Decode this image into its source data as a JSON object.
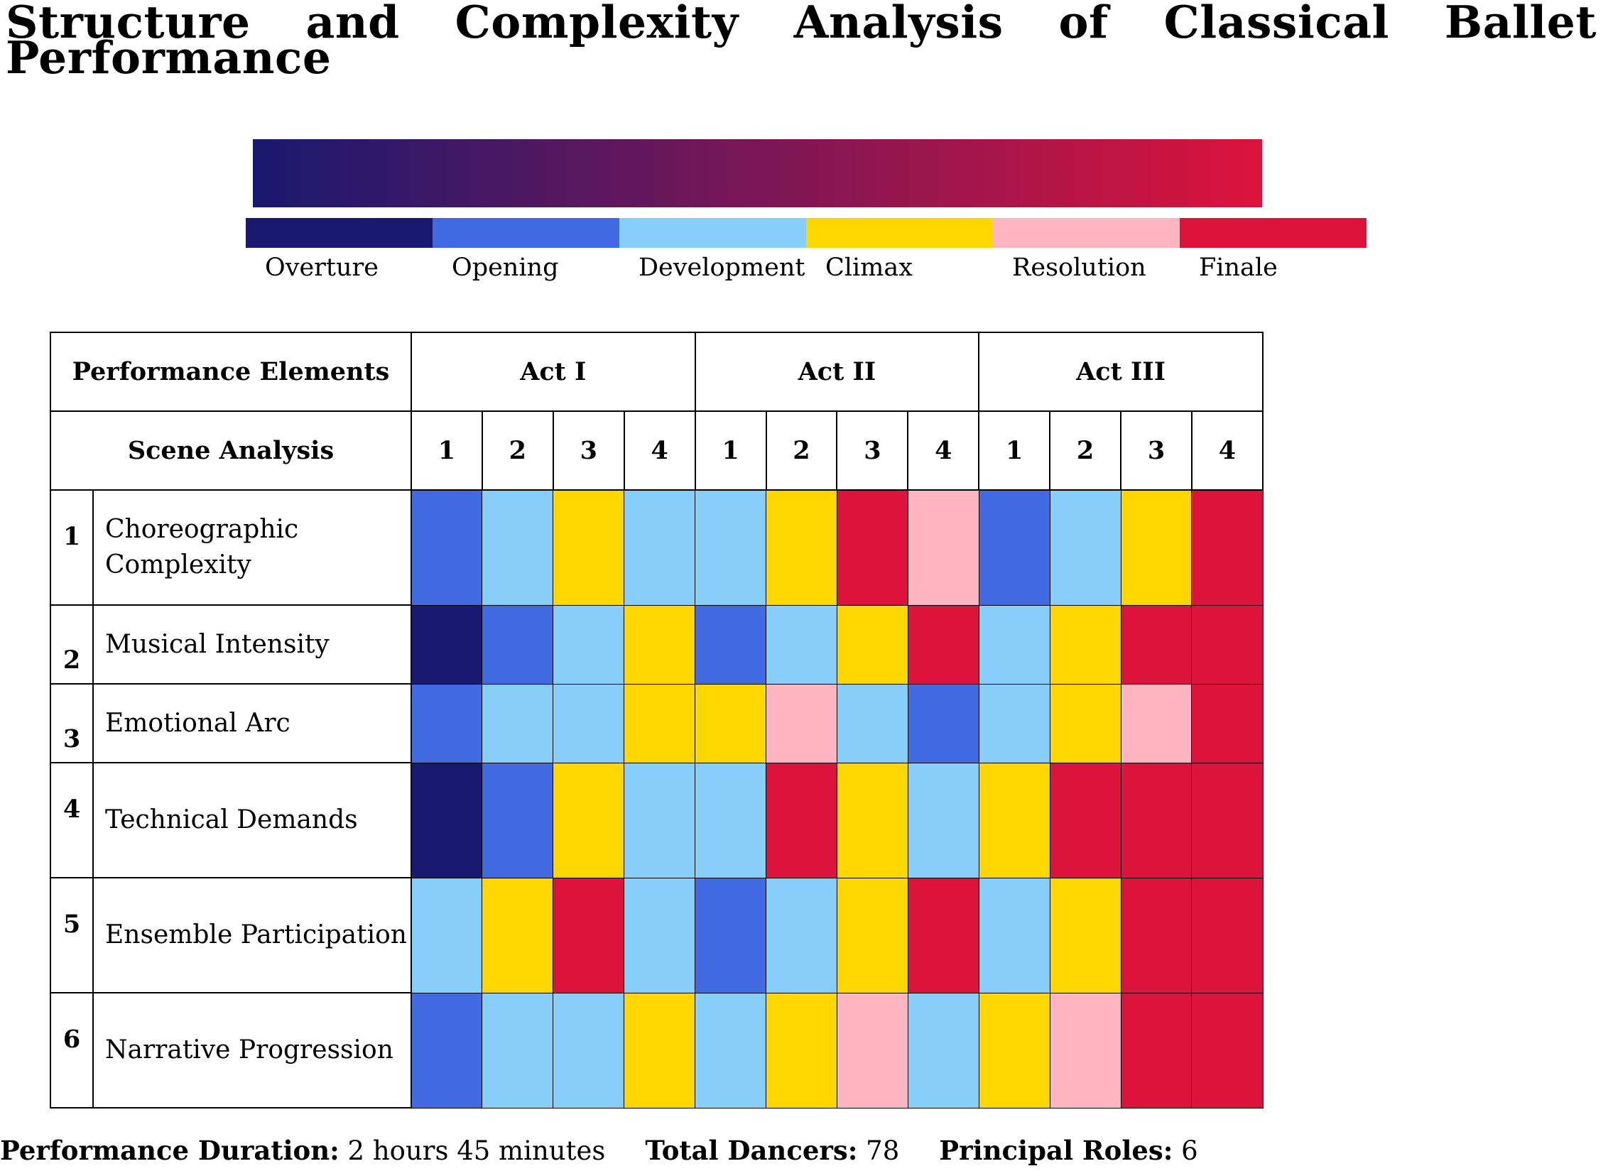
{
  "title": "Structure and Complexity Analysis of Classical Ballet Performance",
  "colors": {
    "gradient_start": "#191970",
    "gradient_end": "#dc143c"
  },
  "legend": [
    {
      "label": "Overture",
      "color": "#191970"
    },
    {
      "label": "Opening",
      "color": "#4169e1"
    },
    {
      "label": "Development",
      "color": "#87cefa"
    },
    {
      "label": "Climax",
      "color": "#ffd700"
    },
    {
      "label": "Resolution",
      "color": "#ffb6c1"
    },
    {
      "label": "Finale",
      "color": "#dc143c"
    }
  ],
  "table": {
    "header_elements": "Performance Elements",
    "header_scene": "Scene Analysis",
    "acts": [
      "Act I",
      "Act II",
      "Act III"
    ],
    "scenes": [
      "1",
      "2",
      "3",
      "4"
    ],
    "rows": [
      {
        "num": "1",
        "label": "Choreographic Complexity",
        "phases": [
          "Opening",
          "Development",
          "Climax",
          "Development",
          "Development",
          "Climax",
          "Finale",
          "Resolution",
          "Opening",
          "Development",
          "Climax",
          "Finale"
        ]
      },
      {
        "num": "2",
        "label": "Musical Intensity",
        "phases": [
          "Overture",
          "Opening",
          "Development",
          "Climax",
          "Opening",
          "Development",
          "Climax",
          "Finale",
          "Development",
          "Climax",
          "Finale",
          "Finale"
        ]
      },
      {
        "num": "3",
        "label": "Emotional Arc",
        "phases": [
          "Opening",
          "Development",
          "Development",
          "Climax",
          "Climax",
          "Resolution",
          "Development",
          "Opening",
          "Development",
          "Climax",
          "Resolution",
          "Finale"
        ]
      },
      {
        "num": "4",
        "label": "Technical Demands",
        "phases": [
          "Overture",
          "Opening",
          "Climax",
          "Development",
          "Development",
          "Finale",
          "Climax",
          "Development",
          "Climax",
          "Finale",
          "Finale",
          "Finale"
        ]
      },
      {
        "num": "5",
        "label": "Ensemble Participation",
        "phases": [
          "Development",
          "Climax",
          "Finale",
          "Development",
          "Opening",
          "Development",
          "Climax",
          "Finale",
          "Development",
          "Climax",
          "Finale",
          "Finale"
        ]
      },
      {
        "num": "6",
        "label": "Narrative Progression",
        "phases": [
          "Opening",
          "Development",
          "Development",
          "Climax",
          "Development",
          "Climax",
          "Resolution",
          "Development",
          "Climax",
          "Resolution",
          "Finale",
          "Finale"
        ]
      }
    ]
  },
  "footer": {
    "duration_label": "Performance Duration:",
    "duration_value": "2 hours 45 minutes",
    "dancers_label": "Total Dancers:",
    "dancers_value": "78",
    "roles_label": "Principal Roles:",
    "roles_value": "6"
  }
}
